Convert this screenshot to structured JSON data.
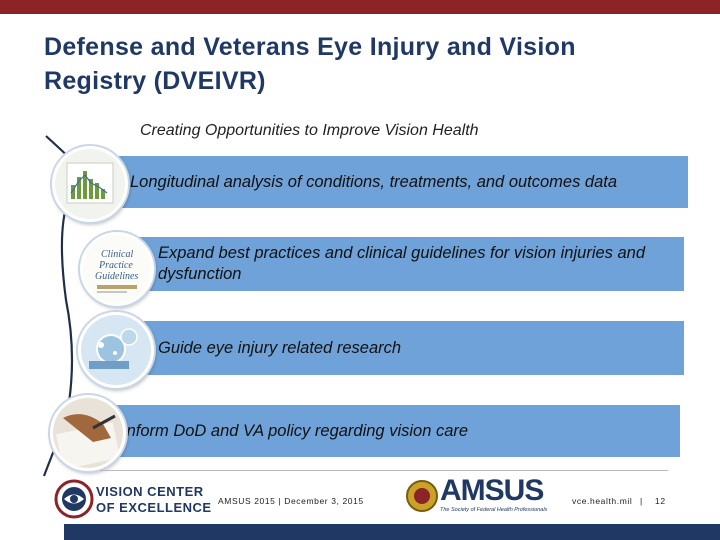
{
  "slide": {
    "title": "Defense and Veterans Eye Injury and Vision Registry (DVEIVR)",
    "subtitle": "Creating Opportunities to Improve Vision Health",
    "items": [
      {
        "text": "Longitudinal analysis of conditions, treatments, and outcomes data",
        "icon": "chart-document-icon"
      },
      {
        "text": "Expand best practices and clinical guidelines for vision injuries and dysfunction",
        "icon": "clinical-practice-guidelines-icon"
      },
      {
        "text": "Guide eye injury related research",
        "icon": "laboratory-research-icon"
      },
      {
        "text": "Inform DoD and VA policy regarding vision care",
        "icon": "signing-document-icon"
      }
    ],
    "clinical_icon_text": {
      "line1": "Clinical",
      "line2": "Practice",
      "line3": "Guidelines"
    }
  },
  "footer": {
    "logo_line1": "VISION CENTER",
    "logo_line2": "OF EXCELLENCE",
    "event": "AMSUS 2015 | December 3, 2015",
    "amsus_logo": "AMSUS",
    "amsus_tagline": "The Society of Federal Health Professionals",
    "website": "vce.health.mil",
    "separator": "|",
    "page_number": "12"
  },
  "colors": {
    "top_bar": "#8b2327",
    "title": "#1f3864",
    "band": "#6fa2d8",
    "bottom_bar": "#1f3864"
  }
}
